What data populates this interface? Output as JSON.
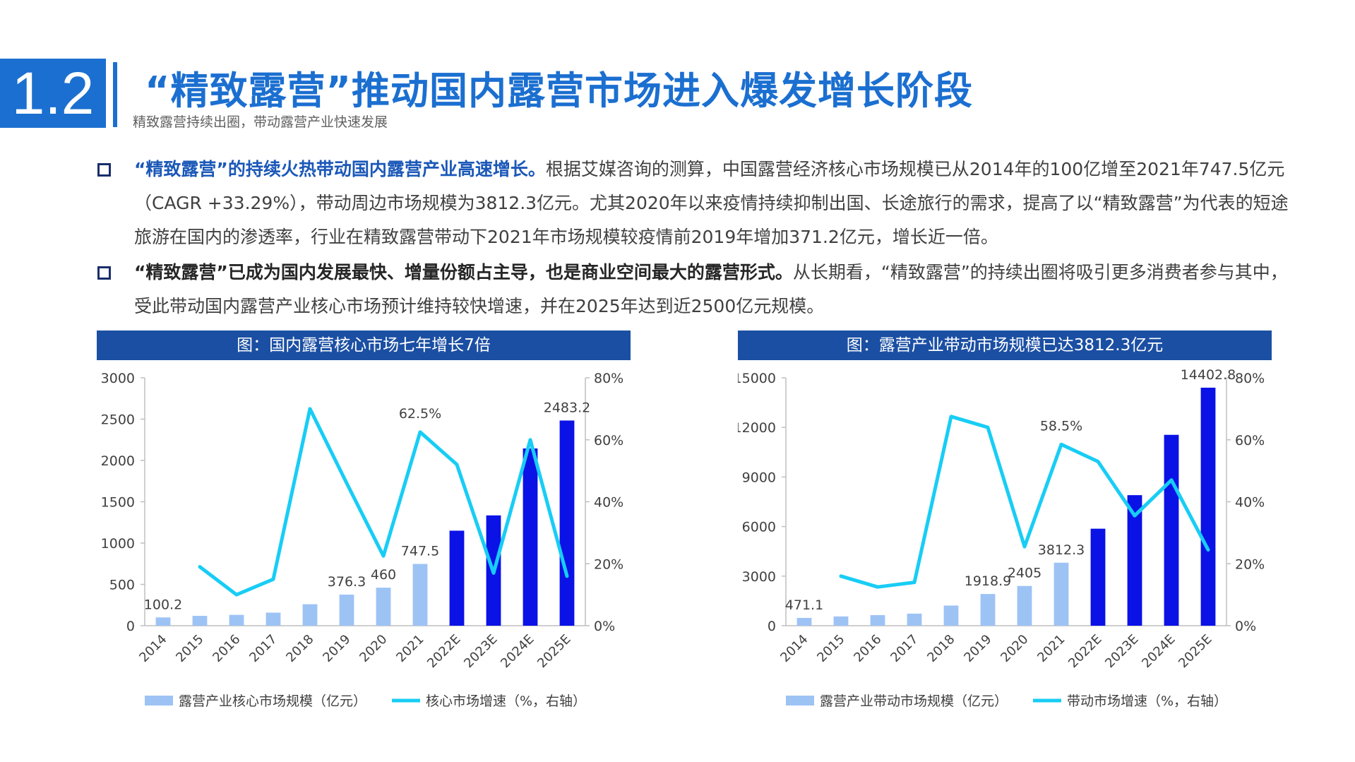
{
  "header": {
    "section_number": "1.2",
    "title": "“精致露营”推动国内露营市场进入爆发增长阶段",
    "subtitle": "精致露营持续出圈，带动露营产业快速发展"
  },
  "bullets": [
    {
      "highlight": "“精致露营”的持续火热带动国内露营产业高速增长。",
      "text": "根据艾媒咨询的测算，中国露营经济核心市场规模已从2014年的100亿增至2021年747.5亿元（CAGR +33.29%），带动周边市场规模为3812.3亿元。尤其2020年以来疫情持续抑制出国、长途旅行的需求，提高了以“精致露营”为代表的短途旅游在国内的渗透率，行业在精致露营带动下2021年市场规模较疫情前2019年增加371.2亿元，增长近一倍。"
    },
    {
      "highlight": "“精致露营”已成为国内发展最快、增量份额占主导，也是商业空间最大的露营形式。",
      "text": "从长期看，“精致露营”的持续出圈将吸引更多消费者参与其中，受此带动国内露营产业核心市场预计维持较快增速，并在2025年达到近2500亿元规模。"
    }
  ],
  "colors": {
    "accent": "#1b6fd0",
    "chart_header": "#1b4fa3",
    "bar_actual": "#9dc3f5",
    "bar_estimate": "#0a12e6",
    "line": "#18cdf5",
    "axis": "#bfbfbf"
  },
  "chart_data": [
    {
      "type": "bar",
      "title": "图：国内露营核心市场七年增长7倍",
      "categories": [
        "2014",
        "2015",
        "2016",
        "2017",
        "2018",
        "2019",
        "2020",
        "2021",
        "2022E",
        "2023E",
        "2024E",
        "2025E"
      ],
      "series": [
        {
          "name": "露营产业核心市场规模（亿元）",
          "type": "bar",
          "axis": "left",
          "values": [
            100.2,
            119,
            131,
            158,
            260,
            376.3,
            460,
            747.5,
            1150,
            1335,
            2145,
            2483.2
          ]
        },
        {
          "name": "核心市场增速（%，右轴）",
          "type": "line",
          "axis": "right",
          "values": [
            null,
            19,
            10,
            15,
            70,
            46,
            22.5,
            62.5,
            52,
            17,
            60,
            16
          ]
        }
      ],
      "ylim_left": [
        0,
        3000
      ],
      "yticks_left": [
        0,
        500,
        1000,
        1500,
        2000,
        2500,
        3000
      ],
      "ylim_right": [
        0,
        80
      ],
      "yticks_right": [
        "0%",
        "20%",
        "40%",
        "60%",
        "80%"
      ],
      "bar_labels": {
        "0": "100.2",
        "5": "376.3",
        "6": "460",
        "7": "747.5",
        "11": "2483.2"
      },
      "line_labels": {
        "7": "62.5%"
      },
      "estimate_start_index": 8,
      "legend_position": "bottom"
    },
    {
      "type": "bar",
      "title": "图：露营产业带动市场规模已达3812.3亿元",
      "categories": [
        "2014",
        "2015",
        "2016",
        "2017",
        "2018",
        "2019",
        "2020",
        "2021",
        "2022E",
        "2023E",
        "2024E",
        "2025E"
      ],
      "series": [
        {
          "name": "露营产业带动市场规模（亿元）",
          "type": "bar",
          "axis": "left",
          "values": [
            471.1,
            560,
            640,
            730,
            1220,
            1918.9,
            2405,
            3812.3,
            5870,
            7900,
            11550,
            14402.8
          ]
        },
        {
          "name": "带动市场增速（%，右轴）",
          "type": "line",
          "axis": "right",
          "values": [
            null,
            16,
            12.5,
            14,
            67.5,
            64,
            25.5,
            58.5,
            53,
            35.5,
            47,
            24.5
          ]
        }
      ],
      "ylim_left": [
        0,
        15000
      ],
      "yticks_left": [
        0,
        3000,
        6000,
        9000,
        12000,
        15000
      ],
      "ylim_right": [
        0,
        80
      ],
      "yticks_right": [
        "0%",
        "20%",
        "40%",
        "60%",
        "80%"
      ],
      "bar_labels": {
        "0": "471.1",
        "5": "1918.9",
        "6": "2405",
        "7": "3812.3",
        "11": "14402.8"
      },
      "line_labels": {
        "7": "58.5%"
      },
      "estimate_start_index": 8,
      "legend_position": "bottom"
    }
  ]
}
